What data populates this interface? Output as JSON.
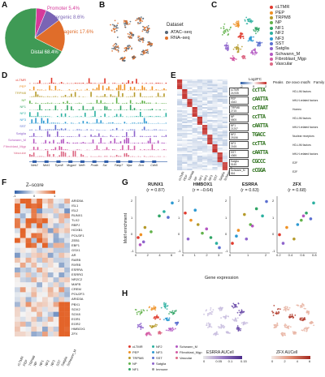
{
  "panels": {
    "A": "A",
    "B": "B",
    "C": "C",
    "D": "D",
    "E": "E",
    "F": "F",
    "G": "G",
    "H": "H"
  },
  "pie": {
    "slices": [
      {
        "label": "Promoter 5.4%",
        "value": 5.4,
        "color": "#d63a9a"
      },
      {
        "label": "Intergenic 8.6%",
        "value": 8.6,
        "color": "#7a64b4"
      },
      {
        "label": "Infragenic 17.6%",
        "value": 17.6,
        "color": "#e06d2a"
      },
      {
        "label": "Distal 68.4%",
        "value": 68.4,
        "color": "#3f9a55"
      }
    ]
  },
  "dataset_legend": {
    "title": "Dataset",
    "items": [
      {
        "label": "ATAC–seq",
        "color": "#556677"
      },
      {
        "label": "RNA–seq",
        "color": "#e0712b"
      }
    ]
  },
  "cluster_legend": [
    {
      "label": "cLTMR",
      "color": "#e0392d"
    },
    {
      "label": "PEP",
      "color": "#ef9124"
    },
    {
      "label": "TRPM8",
      "color": "#b59a2a"
    },
    {
      "label": "NP",
      "color": "#62b24a"
    },
    {
      "label": "NF1",
      "color": "#30a566"
    },
    {
      "label": "NF2",
      "color": "#2bb0a0"
    },
    {
      "label": "NF3",
      "color": "#2e9ad2"
    },
    {
      "label": "SST",
      "color": "#5b6fd0"
    },
    {
      "label": "Satglia",
      "color": "#8e64cc"
    },
    {
      "label": "Schwann_M",
      "color": "#b357c2"
    },
    {
      "label": "Fibroblast_Mgp",
      "color": "#d35ba4"
    },
    {
      "label": "Vascular",
      "color": "#dd6a85"
    }
  ],
  "tracks": {
    "rows": [
      "cLTMR",
      "PEP",
      "TRPM8",
      "NP",
      "NF1",
      "NF2",
      "NF3",
      "SST",
      "Satglia",
      "Schwann_M",
      "Fibroblast_Mgp",
      "Vascular"
    ],
    "genes": [
      "Ntrk2",
      "Ntrk1",
      "Trpm8",
      "Mrgprd",
      "Nefh",
      "Pvalb",
      "Sst",
      "Fabp7",
      "Mpz",
      "Dcn",
      "Cdh5"
    ]
  },
  "heatmap_e": {
    "scale_title": "Log2FC",
    "scale_ticks": [
      "-2",
      "0",
      "2"
    ],
    "cols": [
      "cLTMR",
      "PEP",
      "TRPM8",
      "NP",
      "NF1",
      "NF2",
      "NF3",
      "SST",
      "Satglia",
      "Schwann_M"
    ],
    "headers": [
      "Peaks",
      "De novo motifs",
      "Family"
    ],
    "motifs": [
      {
        "name": "cLTMR",
        "peaks": "24,935",
        "family": "HD-LIM factors",
        "logo": "ccTTA"
      },
      {
        "name": "PEP",
        "peaks": "4343",
        "family": "bHLH-related factors",
        "logo": "cAATTA"
      },
      {
        "name": "TRPM8",
        "peaks": "2715",
        "family": "Homeo",
        "logo": "ccTAAT"
      },
      {
        "name": "NP",
        "peaks": "5505",
        "family": "HD-LIM factors",
        "logo": "ccTTA"
      },
      {
        "name": "NF1",
        "peaks": "21257",
        "family": "bHLH-related factors",
        "logo": "cAATTA"
      },
      {
        "name": "NF2",
        "peaks": "25156",
        "family": "Nuclear receptors",
        "logo": "TGACC"
      },
      {
        "name": "NF3",
        "peaks": "2165",
        "family": "HD-LIM factors",
        "logo": "ccTTA"
      },
      {
        "name": "SST",
        "peaks": "4365",
        "family": "bHLH-related factors",
        "logo": "cAATTA"
      },
      {
        "name": "Satglia",
        "peaks": "5145",
        "family": "E2F",
        "logo": "CGCCC"
      },
      {
        "name": "Schwann_M",
        "peaks": "816",
        "family": "E2F",
        "logo": "cCGGA"
      }
    ]
  },
  "heatmap_f": {
    "scale_title": "Z–score",
    "scale_ticks": [
      "-1",
      "0",
      "1"
    ],
    "genes": [
      "ARID5A",
      "ISL1",
      "ISL2",
      "RUNX1",
      "TLX2",
      "RBPJ",
      "HOXB1",
      "POU3F1",
      "ZEB1",
      "EBF1",
      "GSX1",
      "AR",
      "RARB",
      "RXRB",
      "ESRRA",
      "ESRRG",
      "NR2C2",
      "MAFB",
      "CREM",
      "POU2F3",
      "ARID3A",
      "PBX1",
      "SOX2",
      "SOX8",
      "EGR1",
      "EGR2",
      "HMBOX1",
      "ZFX"
    ],
    "cols": [
      "cLTMR",
      "PEP",
      "TRPM8",
      "NP",
      "NF1",
      "NF2",
      "NF3",
      "SST",
      "Satglia",
      "Schwann_M"
    ]
  },
  "scatter": {
    "ylabel": "Motif enrichment",
    "xlabel": "Gene expression",
    "plots": [
      {
        "title": "RUNX1",
        "r": "(r = 0.87)",
        "xticks": [
          "0",
          "2",
          "4",
          "6"
        ],
        "yticks": [
          "-1",
          "0",
          "1",
          "2"
        ]
      },
      {
        "title": "HMBOX1",
        "r": "(r = –0.64)",
        "xticks": [
          "0",
          "1",
          "2",
          "3"
        ],
        "yticks": [
          "-1",
          "0",
          "1",
          "2"
        ]
      },
      {
        "title": "ESRRA",
        "r": "(r = 0.63)",
        "xticks": [
          "0",
          "1",
          "2"
        ],
        "yticks": [
          "-1",
          "0",
          "1",
          "2"
        ]
      },
      {
        "title": "ZFX",
        "r": "(r = 0.68)",
        "xticks": [
          "0.2",
          "0.4",
          "0.6",
          "0.8"
        ],
        "yticks": [
          "-1",
          "0",
          "1",
          "2"
        ]
      }
    ],
    "points": [
      [
        [
          0.2,
          -0.4
        ],
        [
          0.6,
          -0.2
        ],
        [
          1.2,
          0.3
        ],
        [
          2.1,
          0.0
        ],
        [
          3.3,
          1.1
        ],
        [
          4.0,
          1.4
        ],
        [
          5.2,
          2.0
        ],
        [
          4.6,
          1.0
        ],
        [
          1.0,
          -0.7
        ],
        [
          0.5,
          -0.9
        ]
      ],
      [
        [
          0.4,
          1.3
        ],
        [
          0.8,
          0.8
        ],
        [
          1.3,
          0.5
        ],
        [
          1.6,
          -0.1
        ],
        [
          2.2,
          -0.4
        ],
        [
          2.6,
          -0.8
        ],
        [
          1.1,
          1.5
        ],
        [
          2.8,
          -1.1
        ],
        [
          0.6,
          -0.5
        ],
        [
          1.9,
          0.2
        ]
      ],
      [
        [
          0.2,
          -0.8
        ],
        [
          0.5,
          0.1
        ],
        [
          0.8,
          1.2
        ],
        [
          1.1,
          0.5
        ],
        [
          1.4,
          1.6
        ],
        [
          1.7,
          1.1
        ],
        [
          0.4,
          -0.3
        ],
        [
          1.9,
          2.1
        ],
        [
          0.9,
          -0.5
        ],
        [
          1.2,
          0.4
        ]
      ],
      [
        [
          0.25,
          -0.2
        ],
        [
          0.35,
          0.3
        ],
        [
          0.45,
          -0.5
        ],
        [
          0.55,
          0.8
        ],
        [
          0.62,
          1.3
        ],
        [
          0.72,
          2.0
        ],
        [
          0.5,
          0.5
        ],
        [
          0.68,
          0.9
        ],
        [
          0.3,
          -0.8
        ],
        [
          0.58,
          1.1
        ]
      ]
    ],
    "point_colors": [
      "#e0392d",
      "#ef9124",
      "#b59a2a",
      "#62b24a",
      "#30a566",
      "#2bb0a0",
      "#2e9ad2",
      "#5b6fd0",
      "#8e64cc",
      "#b357c2"
    ]
  },
  "umap_h": {
    "legend": [
      {
        "label": "cLTMR",
        "color": "#e0392d"
      },
      {
        "label": "NF2",
        "color": "#2bb0a0"
      },
      {
        "label": "Schwann_M",
        "color": "#b357c2"
      },
      {
        "label": "PEP",
        "color": "#ef9124"
      },
      {
        "label": "NF3",
        "color": "#2e9ad2"
      },
      {
        "label": "Fibroblast_Mgp",
        "color": "#d35ba4"
      },
      {
        "label": "TRPM8",
        "color": "#b59a2a"
      },
      {
        "label": "SST",
        "color": "#5b6fd0"
      },
      {
        "label": "Vascular",
        "color": "#dd6a85"
      },
      {
        "label": "NP",
        "color": "#62b24a"
      },
      {
        "label": "Satglia",
        "color": "#8e64cc"
      },
      {
        "label": "",
        "color": ""
      },
      {
        "label": "NF1",
        "color": "#30a566"
      },
      {
        "label": "Immune",
        "color": "#999999"
      },
      {
        "label": "",
        "color": ""
      }
    ],
    "esrra": {
      "title": "ESRRA AUCell",
      "ticks": [
        "0",
        "0.05",
        "0.1",
        "0.15"
      ]
    },
    "zfx": {
      "title": "ZFX AUCell",
      "ticks": [
        "0",
        "2",
        "4",
        "6"
      ]
    }
  }
}
